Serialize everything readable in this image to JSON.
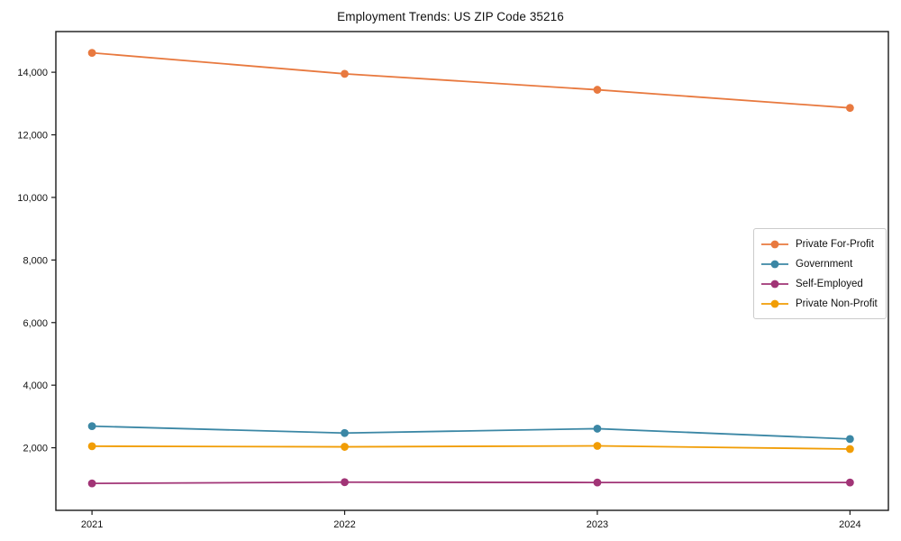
{
  "title": "Employment Trends: US ZIP Code 35216",
  "chart_data": {
    "type": "line",
    "title": "Employment Trends: US ZIP Code 35216",
    "xlabel": "",
    "ylabel": "",
    "x": [
      2021,
      2022,
      2023,
      2024
    ],
    "x_tick_labels": [
      "2021",
      "2022",
      "2023",
      "2024"
    ],
    "series": [
      {
        "name": "Private For-Profit",
        "color": "#e8793f",
        "values": [
          14620,
          13950,
          13440,
          12860
        ]
      },
      {
        "name": "Government",
        "color": "#3b87a5",
        "values": [
          2690,
          2470,
          2610,
          2280
        ]
      },
      {
        "name": "Self-Employed",
        "color": "#a13476",
        "values": [
          860,
          900,
          890,
          890
        ]
      },
      {
        "name": "Private Non-Profit",
        "color": "#f19d05",
        "values": [
          2050,
          2030,
          2060,
          1960
        ]
      }
    ],
    "yticks": [
      2000,
      4000,
      6000,
      8000,
      10000,
      12000,
      14000
    ],
    "ytick_labels": [
      "2,000",
      "4,000",
      "6,000",
      "8,000",
      "10,000",
      "12,000",
      "14,000"
    ],
    "ylim": [
      0,
      15300
    ],
    "xlim": [
      2020.857,
      2024.152
    ],
    "grid": false,
    "marker": "circle",
    "legend_position": "center right"
  }
}
